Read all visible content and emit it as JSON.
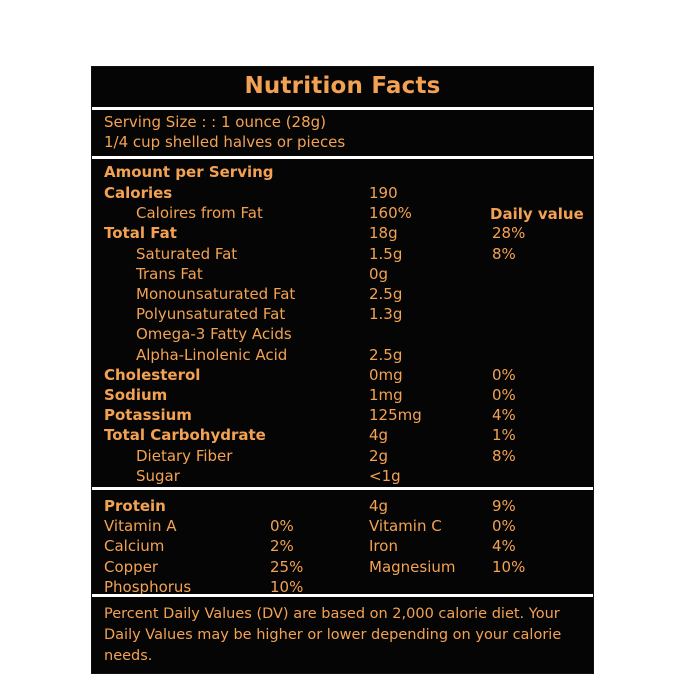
{
  "title": "Nutrition Facts",
  "serving": {
    "line1": "Serving Size : : 1 ounce (28g)",
    "line2": "1/4 cup shelled halves or pieces"
  },
  "amount_header": "Amount per Serving",
  "daily_value_header": "Daily value",
  "rows": [
    {
      "label": "Calories",
      "bold": true,
      "indent": false,
      "amount": "190",
      "dv": ""
    },
    {
      "label": "Caloires from Fat",
      "bold": false,
      "indent": true,
      "amount": "160%",
      "dv": ""
    },
    {
      "label": "Total Fat",
      "bold": true,
      "indent": false,
      "amount": "18g",
      "dv": "28%"
    },
    {
      "label": "Saturated Fat",
      "bold": false,
      "indent": true,
      "amount": "1.5g",
      "dv": "8%"
    },
    {
      "label": "Trans Fat",
      "bold": false,
      "indent": true,
      "amount": "0g",
      "dv": ""
    },
    {
      "label": "Monounsaturated Fat",
      "bold": false,
      "indent": true,
      "amount": "2.5g",
      "dv": ""
    },
    {
      "label": "Polyunsaturated Fat",
      "bold": false,
      "indent": true,
      "amount": "1.3g",
      "dv": ""
    },
    {
      "label": "Omega-3 Fatty Acids",
      "bold": false,
      "indent": true,
      "amount": "",
      "dv": ""
    },
    {
      "label": "Alpha-Linolenic Acid",
      "bold": false,
      "indent": true,
      "amount": "2.5g",
      "dv": ""
    },
    {
      "label": "Cholesterol",
      "bold": true,
      "indent": false,
      "amount": "0mg",
      "dv": "0%"
    },
    {
      "label": "Sodium",
      "bold": true,
      "indent": false,
      "amount": "1mg",
      "dv": "0%"
    },
    {
      "label": "Potassium",
      "bold": true,
      "indent": false,
      "amount": "125mg",
      "dv": "4%"
    },
    {
      "label": "Total Carbohydrate",
      "bold": true,
      "indent": false,
      "amount": "4g",
      "dv": "1%"
    },
    {
      "label": "Dietary Fiber",
      "bold": false,
      "indent": true,
      "amount": "2g",
      "dv": "8%"
    },
    {
      "label": "Sugar",
      "bold": false,
      "indent": true,
      "amount": "<1g",
      "dv": ""
    }
  ],
  "protein": {
    "label": "Protein",
    "amount": "4g",
    "dv": "9%"
  },
  "minerals": [
    {
      "left_label": "Vitamin A",
      "left_value": "0%",
      "right_label": "Vitamin C",
      "right_value": "0%"
    },
    {
      "left_label": "Calcium",
      "left_value": "2%",
      "right_label": "Iron",
      "right_value": "4%"
    },
    {
      "left_label": "Copper",
      "left_value": "25%",
      "right_label": "Magnesium",
      "right_value": "10%"
    },
    {
      "left_label": "Phosphorus",
      "left_value": "10%",
      "right_label": "",
      "right_value": ""
    }
  ],
  "footnote": "Percent Daily Values (DV) are based on 2,000 calorie diet. Your Daily Values may be higher or lower depending on your calorie needs.",
  "colors": {
    "background": "#050505",
    "text": "#f3a253",
    "separator": "#ffffff"
  }
}
